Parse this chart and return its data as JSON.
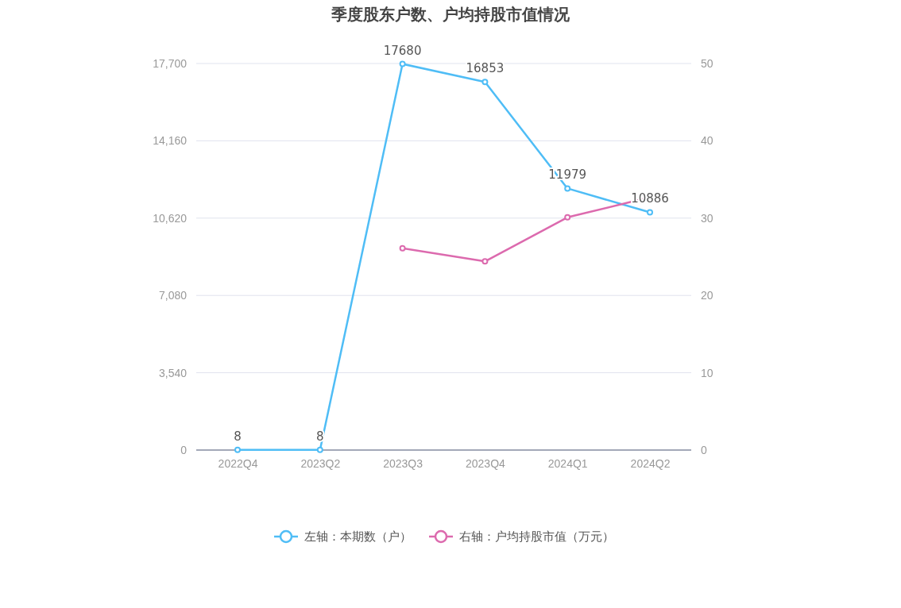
{
  "chart_data": {
    "type": "line",
    "title": "季度股东户数、户均持股市值情况",
    "categories": [
      "2022Q4",
      "2023Q2",
      "2023Q3",
      "2023Q4",
      "2024Q1",
      "2024Q2"
    ],
    "series": [
      {
        "name": "左轴：本期数（户）",
        "color": "#4fbdf6",
        "values": [
          8,
          8,
          17680,
          16853,
          11979,
          10886
        ],
        "value_labels": [
          "8",
          "8",
          "17680",
          "16853",
          "11979",
          "10886"
        ]
      },
      {
        "name": "右轴：户均持股市值（万元）",
        "color": "#dc6aae",
        "axis": "y2",
        "values": [
          null,
          null,
          26.1,
          24.4,
          30.1,
          32.7
        ]
      }
    ],
    "ylim": [
      0,
      17700
    ],
    "yticks": [
      0,
      {
        "value": 3540,
        "label": "3,540"
      },
      {
        "value": 7080,
        "label": "7,080"
      },
      {
        "value": 10620,
        "label": "10,620"
      },
      {
        "value": 14160,
        "label": "14,160"
      },
      {
        "value": 17700,
        "label": "17,700"
      }
    ],
    "y2lim": [
      0,
      50
    ],
    "y2ticks": [
      0,
      10,
      20,
      30,
      40,
      50
    ],
    "grid": "y",
    "legend": "bottom",
    "marker": "circle",
    "line_style": "solid"
  }
}
